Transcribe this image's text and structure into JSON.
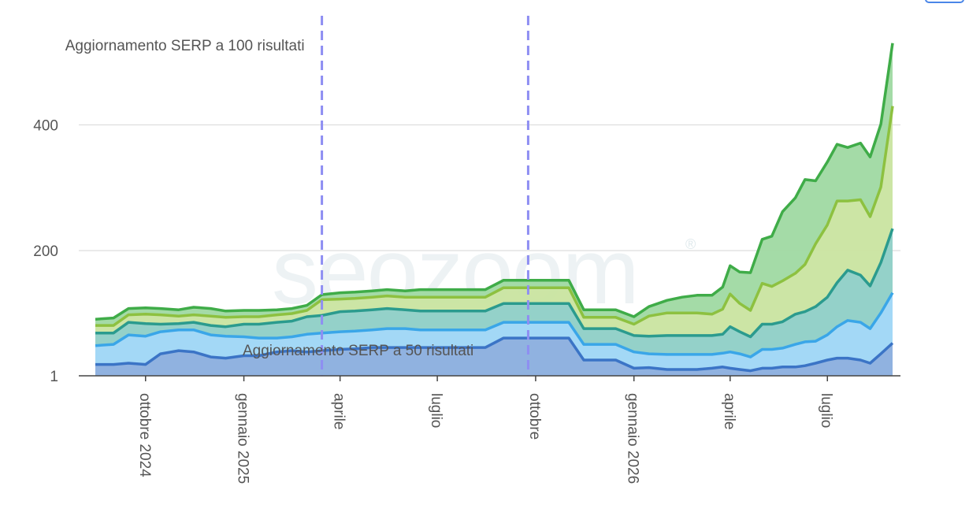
{
  "watermark": {
    "text": "seozoom",
    "mark": "®"
  },
  "chart_data": {
    "type": "area",
    "stacked": true,
    "title": "",
    "xlabel": "",
    "ylabel": "",
    "grid": true,
    "legend": "none",
    "y_scale": "linear",
    "ylim": [
      1,
      560
    ],
    "y_ticks": [
      {
        "value": 1,
        "label": "1"
      },
      {
        "value": 200,
        "label": "200"
      },
      {
        "value": 400,
        "label": "400"
      }
    ],
    "x_ticks": [
      {
        "date": "2024-10-01",
        "label": "ottobre 2024"
      },
      {
        "date": "2025-01-01",
        "label": "gennaio 2025"
      },
      {
        "date": "2025-04-01",
        "label": "aprile"
      },
      {
        "date": "2025-07-01",
        "label": "luglio"
      },
      {
        "date": "2025-10-01",
        "label": "ottobre"
      },
      {
        "date": "2026-01-01",
        "label": "gennaio 2026"
      },
      {
        "date": "2026-04-01",
        "label": "aprile"
      },
      {
        "date": "2026-07-01",
        "label": "luglio"
      }
    ],
    "annotations": [
      {
        "date": "2025-03-15",
        "label": "Aggiornamento SERP a 100 risultati",
        "color": "#8e8ef2"
      },
      {
        "date": "2025-09-24",
        "label": "Aggiornamento SERP a 50 risultati",
        "color": "#8e8ef2"
      }
    ],
    "x": [
      "2024-08-15",
      "2024-09-01",
      "2024-09-15",
      "2024-10-01",
      "2024-10-15",
      "2024-11-01",
      "2024-11-15",
      "2024-12-01",
      "2024-12-15",
      "2025-01-01",
      "2025-01-15",
      "2025-02-01",
      "2025-02-15",
      "2025-03-01",
      "2025-03-15",
      "2025-04-01",
      "2025-04-15",
      "2025-05-01",
      "2025-05-15",
      "2025-06-01",
      "2025-06-15",
      "2025-07-01",
      "2025-07-15",
      "2025-08-01",
      "2025-08-15",
      "2025-09-01",
      "2025-09-15",
      "2025-10-01",
      "2025-10-15",
      "2025-11-01",
      "2025-11-15",
      "2025-12-01",
      "2025-12-15",
      "2026-01-01",
      "2026-01-15",
      "2026-02-01",
      "2026-02-15",
      "2026-03-01",
      "2026-03-15",
      "2026-03-25",
      "2026-04-01",
      "2026-04-10",
      "2026-04-20",
      "2026-05-01",
      "2026-05-10",
      "2026-05-20",
      "2026-06-01",
      "2026-06-10",
      "2026-06-20",
      "2026-07-01",
      "2026-07-10",
      "2026-07-20",
      "2026-08-01",
      "2026-08-10",
      "2026-08-20",
      "2026-08-31"
    ],
    "series": [
      {
        "color": "#3b74c6",
        "fill": "#8aaede",
        "values": [
          18,
          18,
          20,
          18,
          35,
          40,
          38,
          30,
          28,
          32,
          32,
          38,
          40,
          38,
          40,
          42,
          43,
          45,
          45,
          45,
          45,
          45,
          45,
          45,
          45,
          60,
          60,
          60,
          60,
          60,
          25,
          25,
          25,
          12,
          13,
          10,
          10,
          10,
          12,
          14,
          12,
          10,
          8,
          12,
          12,
          14,
          14,
          16,
          20,
          25,
          28,
          28,
          25,
          20,
          35,
          52
        ]
      },
      {
        "color": "#3aa6e8",
        "fill": "#9ed6f5",
        "values": [
          30,
          32,
          45,
          45,
          35,
          33,
          35,
          35,
          35,
          30,
          28,
          22,
          22,
          28,
          28,
          28,
          28,
          28,
          30,
          30,
          28,
          28,
          28,
          28,
          28,
          25,
          25,
          25,
          25,
          25,
          25,
          25,
          25,
          26,
          22,
          24,
          24,
          24,
          22,
          22,
          26,
          25,
          22,
          30,
          30,
          30,
          36,
          38,
          35,
          40,
          50,
          60,
          60,
          55,
          65,
          80
        ]
      },
      {
        "color": "#2b9b8e",
        "fill": "#8ecfc6",
        "values": [
          20,
          18,
          20,
          20,
          12,
          10,
          12,
          15,
          15,
          20,
          22,
          25,
          25,
          28,
          28,
          32,
          32,
          32,
          32,
          30,
          30,
          30,
          30,
          30,
          30,
          30,
          30,
          30,
          30,
          30,
          25,
          25,
          25,
          26,
          28,
          30,
          30,
          30,
          30,
          30,
          40,
          35,
          32,
          40,
          40,
          42,
          48,
          48,
          55,
          60,
          70,
          80,
          75,
          68,
          80,
          102
        ]
      },
      {
        "color": "#8dc140",
        "fill": "#c9e4a0",
        "values": [
          12,
          12,
          12,
          15,
          15,
          12,
          12,
          15,
          15,
          12,
          12,
          12,
          12,
          10,
          25,
          20,
          20,
          20,
          20,
          20,
          22,
          22,
          22,
          22,
          22,
          25,
          25,
          25,
          25,
          25,
          18,
          18,
          18,
          18,
          32,
          36,
          36,
          36,
          34,
          40,
          52,
          45,
          42,
          65,
          60,
          65,
          65,
          75,
          100,
          115,
          130,
          110,
          120,
          110,
          120,
          195
        ]
      },
      {
        "color": "#3fac48",
        "fill": "#9fd9a2",
        "values": [
          10,
          12,
          10,
          10,
          10,
          10,
          12,
          12,
          10,
          10,
          10,
          8,
          8,
          8,
          8,
          10,
          10,
          10,
          10,
          10,
          12,
          12,
          12,
          12,
          12,
          12,
          12,
          12,
          12,
          12,
          12,
          12,
          12,
          12,
          15,
          20,
          25,
          28,
          30,
          35,
          45,
          50,
          60,
          70,
          80,
          110,
          120,
          135,
          100,
          100,
          90,
          85,
          90,
          95,
          100,
          100
        ]
      }
    ]
  }
}
